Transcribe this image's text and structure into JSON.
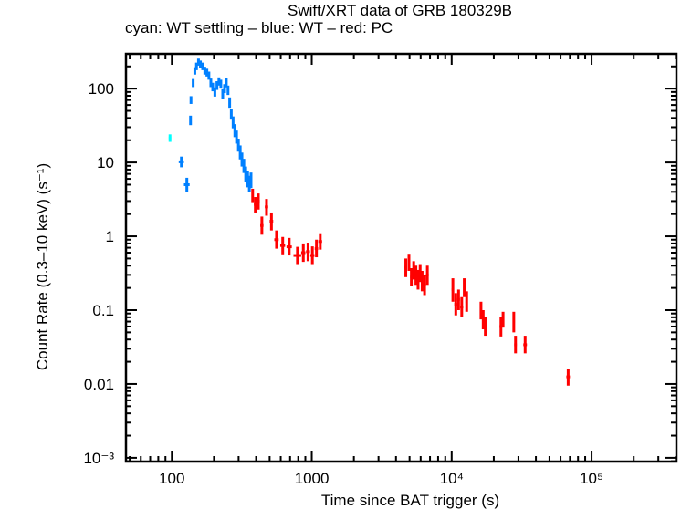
{
  "chart_data": {
    "type": "scatter",
    "title": "Swift/XRT data of GRB 180329B",
    "subtitle": "cyan: WT settling – blue: WT – red: PC",
    "xlabel": "Time since BAT trigger (s)",
    "ylabel": "Count Rate (0.3–10 keV) (s⁻¹)",
    "xscale": "log",
    "yscale": "log",
    "xlim": [
      47,
      404000
    ],
    "ylim": [
      0.00089,
      296
    ],
    "x_ticks": [
      {
        "value": 100,
        "label": "100"
      },
      {
        "value": 1000,
        "label": "1000"
      },
      {
        "value": 10000,
        "label": "10⁴"
      },
      {
        "value": 100000,
        "label": "10⁵"
      }
    ],
    "y_ticks": [
      {
        "value": 100,
        "label": "100"
      },
      {
        "value": 10,
        "label": "10"
      },
      {
        "value": 1,
        "label": "1"
      },
      {
        "value": 0.1,
        "label": "0.1"
      },
      {
        "value": 0.01,
        "label": "0.01"
      },
      {
        "value": 0.001,
        "label": "10⁻³"
      }
    ],
    "grid": false,
    "series": [
      {
        "name": "WT settling",
        "color": "#00ffff",
        "points": [
          {
            "t": 97,
            "terr": [
              95,
              99
            ],
            "rate": 21.5,
            "rerr": [
              19,
              24
            ]
          }
        ]
      },
      {
        "name": "WT",
        "color": "#0080ff",
        "points": [
          {
            "t": 117,
            "terr": [
              112,
              122
            ],
            "rate": 10.2,
            "rerr": [
              8.6,
              12
            ]
          },
          {
            "t": 128,
            "terr": [
              122,
              134
            ],
            "rate": 5.0,
            "rerr": [
              4.0,
              6.2
            ]
          },
          {
            "t": 136,
            "terr": [
              135,
              137
            ],
            "rate": 37,
            "rerr": [
              32,
              43
            ]
          },
          {
            "t": 137,
            "terr": [
              136,
              138
            ],
            "rate": 70,
            "rerr": [
              62,
              79
            ]
          },
          {
            "t": 142,
            "terr": [
              141,
              143
            ],
            "rate": 120,
            "rerr": [
              105,
              135
            ]
          },
          {
            "t": 146,
            "terr": [
              145,
              147
            ],
            "rate": 175,
            "rerr": [
              155,
              195
            ]
          },
          {
            "t": 150,
            "terr": [
              149,
              151
            ],
            "rate": 200,
            "rerr": [
              178,
              225
            ]
          },
          {
            "t": 155,
            "terr": [
              154,
              156
            ],
            "rate": 230,
            "rerr": [
              205,
              255
            ]
          },
          {
            "t": 160,
            "terr": [
              159,
              161
            ],
            "rate": 215,
            "rerr": [
              190,
              240
            ]
          },
          {
            "t": 166,
            "terr": [
              165,
              167
            ],
            "rate": 200,
            "rerr": [
              178,
              225
            ]
          },
          {
            "t": 172,
            "terr": [
              171,
              173
            ],
            "rate": 175,
            "rerr": [
              155,
              198
            ]
          },
          {
            "t": 178,
            "terr": [
              177,
              179
            ],
            "rate": 165,
            "rerr": [
              146,
              186
            ]
          },
          {
            "t": 184,
            "terr": [
              183,
              185
            ],
            "rate": 150,
            "rerr": [
              132,
              170
            ]
          },
          {
            "t": 190,
            "terr": [
              189,
              191
            ],
            "rate": 120,
            "rerr": [
              105,
              137
            ]
          },
          {
            "t": 196,
            "terr": [
              195,
              197
            ],
            "rate": 105,
            "rerr": [
              92,
              120
            ]
          },
          {
            "t": 203,
            "terr": [
              202,
              204
            ],
            "rate": 90,
            "rerr": [
              78,
              104
            ]
          },
          {
            "t": 210,
            "terr": [
              209,
              211
            ],
            "rate": 110,
            "rerr": [
              96,
              126
            ]
          },
          {
            "t": 217,
            "terr": [
              216,
              218
            ],
            "rate": 125,
            "rerr": [
              110,
              142
            ]
          },
          {
            "t": 224,
            "terr": [
              223,
              225
            ],
            "rate": 115,
            "rerr": [
              100,
              132
            ]
          },
          {
            "t": 231,
            "terr": [
              230,
              232
            ],
            "rate": 85,
            "rerr": [
              73,
              98
            ]
          },
          {
            "t": 238,
            "terr": [
              237,
              239
            ],
            "rate": 100,
            "rerr": [
              87,
              115
            ]
          },
          {
            "t": 245,
            "terr": [
              244,
              246
            ],
            "rate": 120,
            "rerr": [
              104,
              138
            ]
          },
          {
            "t": 252,
            "terr": [
              251,
              253
            ],
            "rate": 95,
            "rerr": [
              82,
              110
            ]
          },
          {
            "t": 259,
            "terr": [
              258,
              260
            ],
            "rate": 65,
            "rerr": [
              55,
              76
            ]
          },
          {
            "t": 266,
            "terr": [
              265,
              267
            ],
            "rate": 45,
            "rerr": [
              38,
              53
            ]
          },
          {
            "t": 274,
            "terr": [
              273,
              275
            ],
            "rate": 35,
            "rerr": [
              29,
              42
            ]
          },
          {
            "t": 282,
            "terr": [
              281,
              283
            ],
            "rate": 27,
            "rerr": [
              22,
              33
            ]
          },
          {
            "t": 290,
            "terr": [
              289,
              291
            ],
            "rate": 22,
            "rerr": [
              18,
              27
            ]
          },
          {
            "t": 299,
            "terr": [
              298,
              300
            ],
            "rate": 17,
            "rerr": [
              14,
              21
            ]
          },
          {
            "t": 308,
            "terr": [
              307,
              309
            ],
            "rate": 14,
            "rerr": [
              11,
              17
            ]
          },
          {
            "t": 317,
            "terr": [
              316,
              318
            ],
            "rate": 11,
            "rerr": [
              8.8,
              13.6
            ]
          },
          {
            "t": 327,
            "terr": [
              326,
              328
            ],
            "rate": 9.0,
            "rerr": [
              7.2,
              11.2
            ]
          },
          {
            "t": 337,
            "terr": [
              336,
              338
            ],
            "rate": 7.0,
            "rerr": [
              5.5,
              8.8
            ]
          },
          {
            "t": 348,
            "terr": [
              347,
              349
            ],
            "rate": 6.0,
            "rerr": [
              4.6,
              7.6
            ]
          },
          {
            "t": 358,
            "terr": [
              357,
              359
            ],
            "rate": 5.2,
            "rerr": [
              4.0,
              6.6
            ]
          },
          {
            "t": 368,
            "terr": [
              367,
              369
            ],
            "rate": 5.8,
            "rerr": [
              4.5,
              7.3
            ]
          }
        ]
      },
      {
        "name": "PC",
        "color": "#ff0000",
        "points": [
          {
            "t": 378,
            "terr": [
              372,
              384
            ],
            "rate": 3.6,
            "rerr": [
              2.9,
              4.4
            ]
          },
          {
            "t": 395,
            "terr": [
              386,
              404
            ],
            "rate": 2.7,
            "rerr": [
              2.1,
              3.4
            ]
          },
          {
            "t": 415,
            "terr": [
              405,
              425
            ],
            "rate": 3.0,
            "rerr": [
              2.3,
              3.8
            ]
          },
          {
            "t": 440,
            "terr": [
              428,
              452
            ],
            "rate": 1.4,
            "rerr": [
              1.05,
              1.85
            ]
          },
          {
            "t": 475,
            "terr": [
              462,
              488
            ],
            "rate": 2.5,
            "rerr": [
              1.9,
              3.2
            ]
          },
          {
            "t": 515,
            "terr": [
              500,
              530
            ],
            "rate": 1.6,
            "rerr": [
              1.2,
              2.1
            ]
          },
          {
            "t": 560,
            "terr": [
              540,
              580
            ],
            "rate": 0.9,
            "rerr": [
              0.68,
              1.2
            ]
          },
          {
            "t": 620,
            "terr": [
              595,
              645
            ],
            "rate": 0.75,
            "rerr": [
              0.57,
              0.98
            ]
          },
          {
            "t": 690,
            "terr": [
              660,
              720
            ],
            "rate": 0.72,
            "rerr": [
              0.55,
              0.95
            ]
          },
          {
            "t": 790,
            "terr": [
              740,
              840
            ],
            "rate": 0.55,
            "rerr": [
              0.42,
              0.72
            ]
          },
          {
            "t": 870,
            "terr": [
              840,
              900
            ],
            "rate": 0.6,
            "rerr": [
              0.45,
              0.8
            ]
          },
          {
            "t": 940,
            "terr": [
              910,
              970
            ],
            "rate": 0.62,
            "rerr": [
              0.46,
              0.82
            ]
          },
          {
            "t": 1010,
            "terr": [
              975,
              1045
            ],
            "rate": 0.55,
            "rerr": [
              0.42,
              0.73
            ]
          },
          {
            "t": 1080,
            "terr": [
              1050,
              1110
            ],
            "rate": 0.68,
            "rerr": [
              0.52,
              0.9
            ]
          },
          {
            "t": 1150,
            "terr": [
              1115,
              1185
            ],
            "rate": 0.85,
            "rerr": [
              0.66,
              1.1
            ]
          },
          {
            "t": 4700,
            "terr": [
              4600,
              4800
            ],
            "rate": 0.38,
            "rerr": [
              0.28,
              0.5
            ]
          },
          {
            "t": 4950,
            "terr": [
              4850,
              5050
            ],
            "rate": 0.45,
            "rerr": [
              0.34,
              0.58
            ]
          },
          {
            "t": 5150,
            "terr": [
              5050,
              5250
            ],
            "rate": 0.28,
            "rerr": [
              0.21,
              0.37
            ]
          },
          {
            "t": 5350,
            "terr": [
              5250,
              5450
            ],
            "rate": 0.35,
            "rerr": [
              0.26,
              0.46
            ]
          },
          {
            "t": 5550,
            "terr": [
              5450,
              5650
            ],
            "rate": 0.3,
            "rerr": [
              0.22,
              0.4
            ]
          },
          {
            "t": 5750,
            "terr": [
              5650,
              5850
            ],
            "rate": 0.26,
            "rerr": [
              0.19,
              0.35
            ]
          },
          {
            "t": 5950,
            "terr": [
              5850,
              6050
            ],
            "rate": 0.32,
            "rerr": [
              0.24,
              0.42
            ]
          },
          {
            "t": 6150,
            "terr": [
              6050,
              6250
            ],
            "rate": 0.25,
            "rerr": [
              0.18,
              0.34
            ]
          },
          {
            "t": 6400,
            "terr": [
              6250,
              6550
            ],
            "rate": 0.22,
            "rerr": [
              0.16,
              0.3
            ]
          },
          {
            "t": 6700,
            "terr": [
              6550,
              6850
            ],
            "rate": 0.3,
            "rerr": [
              0.22,
              0.4
            ]
          },
          {
            "t": 10200,
            "terr": [
              10000,
              10400
            ],
            "rate": 0.19,
            "rerr": [
              0.13,
              0.27
            ]
          },
          {
            "t": 10700,
            "terr": [
              10450,
              10950
            ],
            "rate": 0.12,
            "rerr": [
              0.085,
              0.17
            ]
          },
          {
            "t": 11200,
            "terr": [
              10950,
              11450
            ],
            "rate": 0.14,
            "rerr": [
              0.1,
              0.19
            ]
          },
          {
            "t": 11800,
            "terr": [
              11500,
              12100
            ],
            "rate": 0.11,
            "rerr": [
              0.08,
              0.15
            ]
          },
          {
            "t": 12300,
            "terr": [
              12100,
              12500
            ],
            "rate": 0.2,
            "rerr": [
              0.15,
              0.27
            ]
          },
          {
            "t": 12800,
            "terr": [
              12550,
              13050
            ],
            "rate": 0.13,
            "rerr": [
              0.095,
              0.18
            ]
          },
          {
            "t": 16200,
            "terr": [
              16000,
              16400
            ],
            "rate": 0.1,
            "rerr": [
              0.075,
              0.13
            ]
          },
          {
            "t": 16800,
            "terr": [
              16500,
              17100
            ],
            "rate": 0.075,
            "rerr": [
              0.055,
              0.1
            ]
          },
          {
            "t": 17400,
            "terr": [
              17100,
              17700
            ],
            "rate": 0.06,
            "rerr": [
              0.045,
              0.08
            ]
          },
          {
            "t": 22500,
            "terr": [
              22000,
              23000
            ],
            "rate": 0.06,
            "rerr": [
              0.044,
              0.08
            ]
          },
          {
            "t": 23300,
            "terr": [
              22800,
              23800
            ],
            "rate": 0.075,
            "rerr": [
              0.058,
              0.095
            ]
          },
          {
            "t": 27800,
            "terr": [
              27300,
              28300
            ],
            "rate": 0.07,
            "rerr": [
              0.05,
              0.095
            ]
          },
          {
            "t": 28600,
            "terr": [
              28000,
              29200
            ],
            "rate": 0.034,
            "rerr": [
              0.026,
              0.045
            ]
          },
          {
            "t": 33500,
            "terr": [
              32500,
              34500
            ],
            "rate": 0.034,
            "rerr": [
              0.026,
              0.045
            ]
          },
          {
            "t": 68000,
            "terr": [
              66000,
              70000
            ],
            "rate": 0.0125,
            "rerr": [
              0.0095,
              0.016
            ]
          }
        ]
      }
    ]
  }
}
